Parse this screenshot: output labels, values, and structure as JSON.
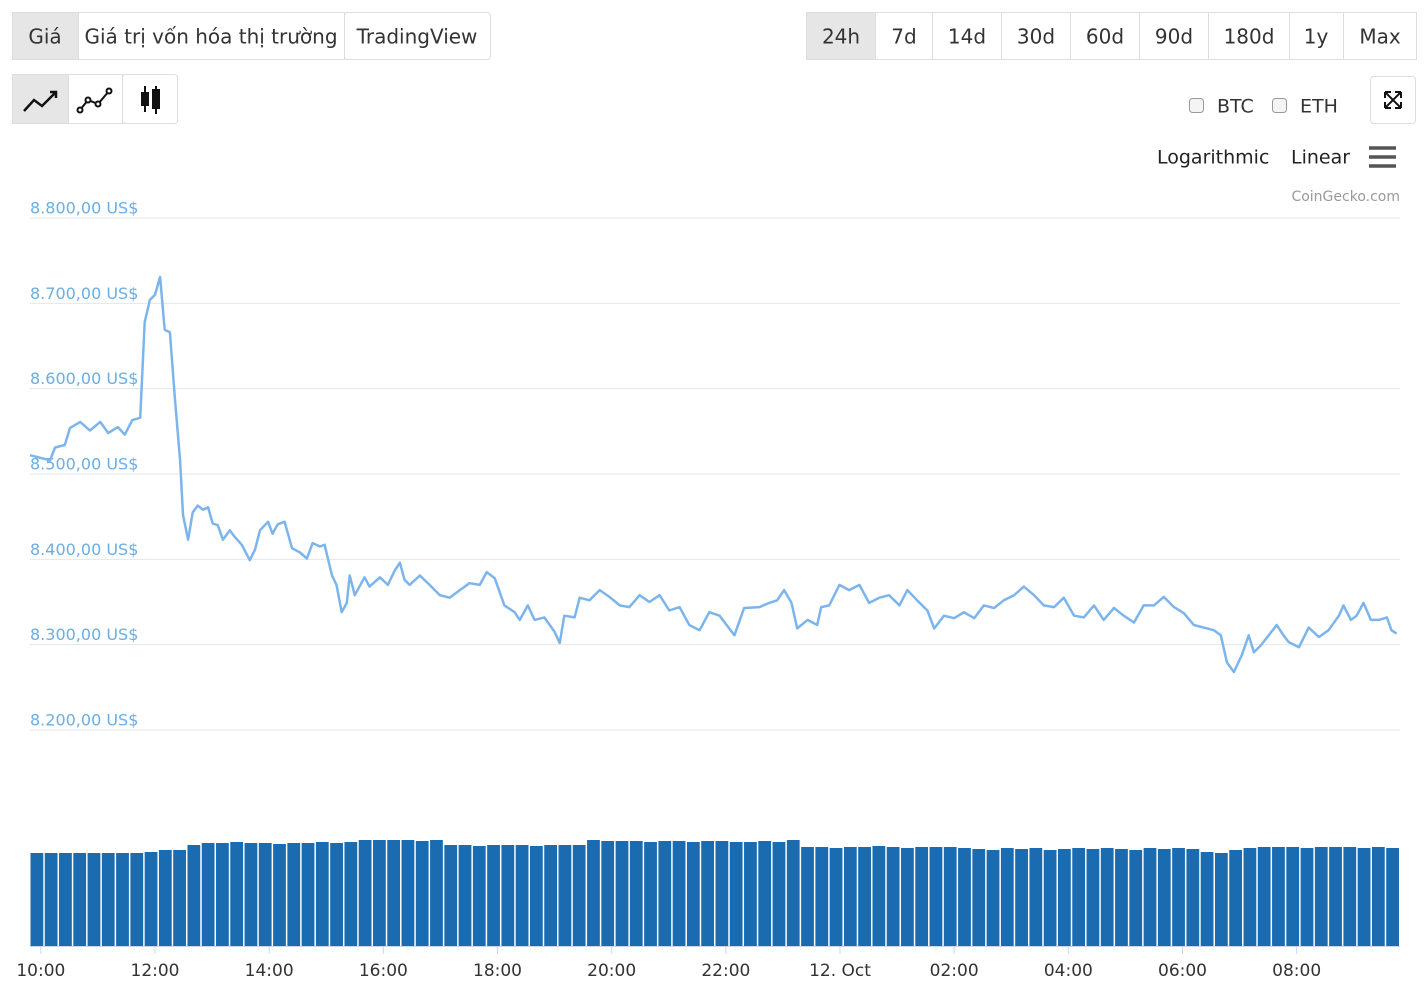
{
  "tabs": [
    "Giá",
    "Giá trị vốn hóa thị trường",
    "TradingView"
  ],
  "ranges": [
    "24h",
    "7d",
    "14d",
    "30d",
    "60d",
    "90d",
    "180d",
    "1y",
    "Max"
  ],
  "compare": [
    "BTC",
    "ETH"
  ],
  "scales": [
    "Logarithmic",
    "Linear"
  ],
  "credit": "CoinGecko.com",
  "chart_data": {
    "type": "line",
    "color": "#7cb5ec",
    "grid": true,
    "x": [
      9.81,
      9.99,
      10.16,
      10.25,
      10.42,
      10.51,
      10.69,
      10.86,
      11.04,
      11.18,
      11.35,
      11.47,
      11.6,
      11.74,
      11.82,
      11.91,
      12.0,
      12.09,
      12.17,
      12.26,
      12.35,
      12.44,
      12.49,
      12.58,
      12.66,
      12.75,
      12.84,
      12.93,
      13.01,
      13.1,
      13.19,
      13.31,
      13.4,
      13.52,
      13.66,
      13.75,
      13.84,
      13.98,
      14.06,
      14.15,
      14.27,
      14.4,
      14.54,
      14.66,
      14.76,
      14.89,
      14.97,
      15.1,
      15.18,
      15.27,
      15.36,
      15.41,
      15.5,
      15.67,
      15.76,
      15.94,
      16.08,
      16.2,
      16.29,
      16.37,
      16.46,
      16.64,
      16.81,
      16.99,
      17.16,
      17.34,
      17.51,
      17.69,
      17.81,
      17.95,
      18.12,
      18.3,
      18.39,
      18.53,
      18.65,
      18.82,
      19.0,
      19.09,
      19.17,
      19.35,
      19.44,
      19.61,
      19.79,
      19.96,
      20.14,
      20.31,
      20.49,
      20.66,
      20.84,
      21.01,
      21.19,
      21.36,
      21.54,
      21.71,
      21.89,
      22.15,
      22.32,
      22.59,
      22.76,
      22.9,
      23.02,
      23.15,
      23.25,
      23.43,
      23.6,
      23.67,
      23.81,
      23.99,
      24.16,
      24.34,
      24.51,
      24.69,
      24.86,
      25.04,
      25.18,
      25.35,
      25.53,
      25.65,
      25.82,
      26.0,
      26.17,
      26.35,
      26.52,
      26.7,
      26.87,
      27.05,
      27.22,
      27.4,
      27.57,
      27.75,
      27.92,
      28.1,
      28.27,
      28.45,
      28.62,
      28.8,
      28.97,
      29.15,
      29.32,
      29.5,
      29.67,
      29.85,
      30.02,
      30.2,
      30.37,
      30.55,
      30.67,
      30.78,
      30.9,
      31.04,
      31.16,
      31.25,
      31.37,
      31.51,
      31.65,
      31.77,
      31.86,
      32.04,
      32.21,
      32.39,
      32.56,
      32.74,
      32.82,
      32.95,
      33.05,
      33.17,
      33.3,
      33.44,
      33.58,
      33.66,
      33.75
    ],
    "values": [
      8522,
      8519,
      8516,
      8531,
      8534,
      8554,
      8561,
      8551,
      8561,
      8548,
      8555,
      8546,
      8563,
      8566,
      8678,
      8704,
      8710,
      8731,
      8669,
      8666,
      8587,
      8516,
      8452,
      8423,
      8455,
      8463,
      8458,
      8461,
      8442,
      8440,
      8423,
      8434,
      8426,
      8417,
      8399,
      8411,
      8434,
      8444,
      8430,
      8441,
      8444,
      8413,
      8408,
      8401,
      8419,
      8415,
      8417,
      8381,
      8370,
      8338,
      8349,
      8381,
      8358,
      8379,
      8368,
      8379,
      8370,
      8387,
      8396,
      8376,
      8370,
      8381,
      8370,
      8358,
      8355,
      8364,
      8372,
      8370,
      8385,
      8378,
      8346,
      8338,
      8329,
      8346,
      8329,
      8332,
      8315,
      8302,
      8334,
      8332,
      8355,
      8352,
      8364,
      8356,
      8346,
      8344,
      8358,
      8350,
      8358,
      8340,
      8344,
      8323,
      8317,
      8338,
      8334,
      8311,
      8343,
      8344,
      8349,
      8352,
      8364,
      8349,
      8319,
      8329,
      8323,
      8344,
      8346,
      8370,
      8364,
      8370,
      8349,
      8355,
      8358,
      8346,
      8364,
      8352,
      8340,
      8319,
      8334,
      8331,
      8338,
      8331,
      8346,
      8343,
      8352,
      8358,
      8368,
      8358,
      8346,
      8344,
      8355,
      8334,
      8332,
      8346,
      8329,
      8343,
      8334,
      8326,
      8346,
      8346,
      8356,
      8344,
      8337,
      8323,
      8320,
      8317,
      8311,
      8279,
      8268,
      8288,
      8311,
      8291,
      8299,
      8311,
      8323,
      8311,
      8303,
      8297,
      8320,
      8309,
      8317,
      8334,
      8346,
      8329,
      8334,
      8349,
      8329,
      8329,
      8332,
      8317,
      8313
    ],
    "xlim": [
      9.81,
      33.81
    ],
    "xticks": [
      {
        "value": 10,
        "label": "10:00"
      },
      {
        "value": 12,
        "label": "12:00"
      },
      {
        "value": 14,
        "label": "14:00"
      },
      {
        "value": 16,
        "label": "16:00"
      },
      {
        "value": 18,
        "label": "18:00"
      },
      {
        "value": 20,
        "label": "20:00"
      },
      {
        "value": 22,
        "label": "22:00"
      },
      {
        "value": 24,
        "label": "12. Oct"
      },
      {
        "value": 26,
        "label": "02:00"
      },
      {
        "value": 28,
        "label": "04:00"
      },
      {
        "value": 30,
        "label": "06:00"
      },
      {
        "value": 32,
        "label": "08:00"
      }
    ],
    "ylim": [
      8200,
      8800
    ],
    "yticks": [
      {
        "value": 8800,
        "label": "8.800,00 US$"
      },
      {
        "value": 8700,
        "label": "8.700,00 US$"
      },
      {
        "value": 8600,
        "label": "8.600,00 US$"
      },
      {
        "value": 8500,
        "label": "8.500,00 US$"
      },
      {
        "value": 8400,
        "label": "8.400,00 US$"
      },
      {
        "value": 8300,
        "label": "8.300,00 US$"
      },
      {
        "value": 8200,
        "label": "8.200,00 US$"
      }
    ],
    "volume": {
      "color": "#1a6bb0",
      "ylim": [
        0,
        110
      ],
      "values": [
        93,
        93,
        93,
        93,
        93,
        93,
        93,
        93,
        94,
        96,
        96,
        101,
        103,
        103,
        104,
        103,
        103,
        102,
        103,
        103,
        104,
        103,
        104,
        106,
        106,
        106,
        106,
        105,
        106,
        101,
        101,
        100,
        101,
        101,
        101,
        100,
        101,
        101,
        101,
        106,
        105,
        105,
        105,
        104,
        105,
        105,
        104,
        105,
        105,
        104,
        104,
        105,
        104,
        106,
        99,
        99,
        98,
        99,
        99,
        100,
        99,
        98,
        99,
        99,
        99,
        98,
        97,
        96,
        98,
        97,
        98,
        96,
        97,
        98,
        97,
        98,
        97,
        96,
        98,
        97,
        98,
        97,
        94,
        93,
        96,
        98,
        99,
        99,
        99,
        98,
        99,
        99,
        99,
        98,
        99,
        98
      ]
    }
  }
}
